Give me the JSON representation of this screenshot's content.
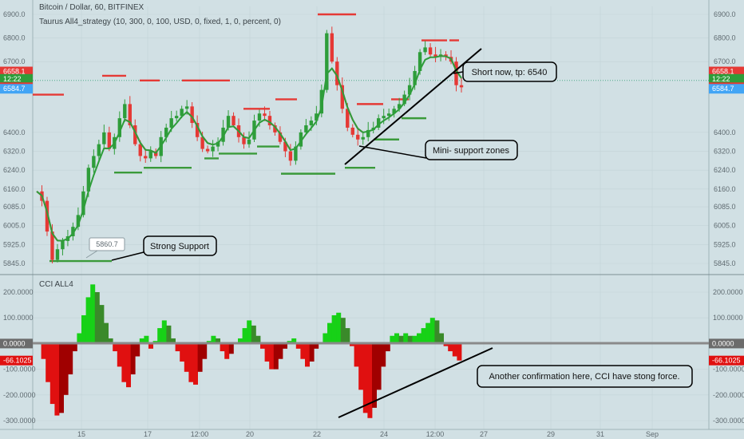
{
  "header": {
    "symbol_title": "Bitcoin / Dollar, 60, BITFINEX",
    "strategy_legend": "Taurus All4_strategy (10, 300, 0, 100, USD, 0, fixed, 1, 0, percent, 0)",
    "indicator_legend": "CCI ALL4"
  },
  "colors": {
    "background": "#d1e0e4",
    "candle_up": "#2e9d3a",
    "candle_down": "#e53935",
    "cci_up": "#17d117",
    "cci_up_dark": "#3a8a2a",
    "cci_down": "#e01010",
    "cci_down_dark": "#a00000",
    "support_level": "#3a9a3a",
    "resistance_level": "#e53935"
  },
  "chart_data": [
    {
      "type": "candlestick",
      "title": "Bitcoin / Dollar, 60, BITFINEX",
      "ylim": [
        5800,
        6950
      ],
      "y_ticks": [
        "6900.0",
        "6800.0",
        "6700.0",
        "6400.0",
        "6320.0",
        "6240.0",
        "6160.0",
        "6085.0",
        "6005.0",
        "5925.0",
        "5845.0"
      ],
      "price_tags": [
        {
          "label": "6658.1",
          "value": 6658.1,
          "color": "#e53935"
        },
        {
          "label": "12:22",
          "value": 6620,
          "color": "#2e9d3a"
        },
        {
          "label": "6591.3",
          "value": 6591.3,
          "color": "#e53935"
        },
        {
          "label": "6584.7",
          "value": 6584.7,
          "color": "#42a5f5"
        }
      ],
      "close_path": [
        6150,
        6110,
        5980,
        5860,
        5905,
        5940,
        5960,
        6000,
        6050,
        6150,
        6250,
        6300,
        6350,
        6400,
        6330,
        6380,
        6460,
        6520,
        6430,
        6350,
        6300,
        6290,
        6320,
        6300,
        6380,
        6420,
        6460,
        6470,
        6500,
        6510,
        6440,
        6380,
        6330,
        6320,
        6340,
        6360,
        6420,
        6470,
        6430,
        6380,
        6350,
        6370,
        6450,
        6480,
        6470,
        6430,
        6400,
        6360,
        6320,
        6280,
        6340,
        6400,
        6430,
        6450,
        6480,
        6580,
        6820,
        6700,
        6600,
        6500,
        6420,
        6390,
        6370,
        6380,
        6410,
        6420,
        6460,
        6470,
        6480,
        6500,
        6520,
        6560,
        6600,
        6660,
        6740,
        6760,
        6730,
        6720,
        6730,
        6720,
        6700,
        6600,
        6591
      ],
      "resistance_levels": [
        6560,
        6640,
        6620,
        6620,
        6500,
        6540,
        6900,
        6520,
        6540,
        6790,
        6790
      ],
      "support_levels": [
        5855,
        5855,
        6230,
        6250,
        6290,
        6310,
        6340,
        6225,
        6250,
        6370,
        6460
      ],
      "annotation_values": [
        "5860.7"
      ]
    },
    {
      "type": "histogram",
      "title": "CCI ALL4",
      "ylim": [
        -300,
        260
      ],
      "y_ticks": [
        "200.0000",
        "100.0000",
        "0.0000",
        "-100.0000",
        "-200.0000",
        "-300.0000"
      ],
      "value_tags": [
        {
          "label": "0.0000",
          "value": 0,
          "color": "#6b6b6b"
        },
        {
          "label": "-66.1025",
          "value": -66.1025,
          "color": "#e01010"
        }
      ],
      "values": [
        0,
        -60,
        -150,
        -235,
        -280,
        -270,
        -200,
        -120,
        -30,
        40,
        110,
        180,
        230,
        200,
        150,
        80,
        20,
        -30,
        -90,
        -150,
        -170,
        -120,
        -50,
        20,
        30,
        -20,
        10,
        60,
        90,
        70,
        20,
        -30,
        -70,
        -110,
        -150,
        -160,
        -110,
        -60,
        10,
        30,
        20,
        -30,
        -60,
        -40,
        0,
        20,
        60,
        90,
        70,
        30,
        -20,
        -70,
        -100,
        -100,
        -60,
        -20,
        10,
        20,
        -20,
        -60,
        -90,
        -70,
        -20,
        0,
        40,
        80,
        110,
        120,
        100,
        60,
        -10,
        -90,
        -180,
        -270,
        -290,
        -250,
        -180,
        -90,
        -30,
        30,
        40,
        30,
        40,
        30,
        30,
        40,
        60,
        80,
        100,
        90,
        40,
        -10,
        -30,
        -50,
        -66
      ],
      "x_ticks": [
        "15",
        "17",
        "12:00",
        "20",
        "22",
        "24",
        "12:00",
        "27",
        "29",
        "31",
        "Sep"
      ]
    }
  ],
  "callouts": {
    "short": "Short now, tp: 6540",
    "mini_support": "Mini- support zones",
    "strong_support": "Strong Support",
    "cci_confirmation": "Another confirmation here, CCI have stong force."
  }
}
